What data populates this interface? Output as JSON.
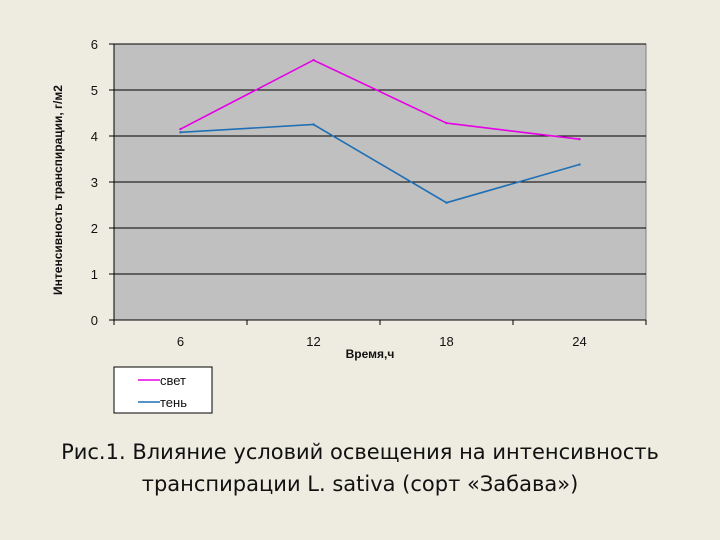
{
  "chart_data": {
    "type": "line",
    "categories": [
      "6",
      "12",
      "18",
      "24"
    ],
    "series": [
      {
        "name": "свет",
        "values": [
          4.15,
          5.65,
          4.28,
          3.93
        ],
        "color": "#e600e6"
      },
      {
        "name": "тень",
        "values": [
          4.08,
          4.25,
          2.55,
          3.38
        ],
        "color": "#1f6fb4"
      }
    ],
    "xlabel": "Время,ч",
    "ylabel": "Интенсивность транспирации, г/м2",
    "ylim": [
      0,
      6
    ],
    "yticks": [
      "0",
      "1",
      "2",
      "3",
      "4",
      "5",
      "6"
    ],
    "grid": true,
    "legend_position": "bottom-left",
    "plot_background": "#c0c0c0"
  },
  "caption": {
    "line1": "Рис.1. Влияние условий освещения на интенсивность",
    "line2": "транспирации L. sativa (сорт «Забава»)"
  }
}
